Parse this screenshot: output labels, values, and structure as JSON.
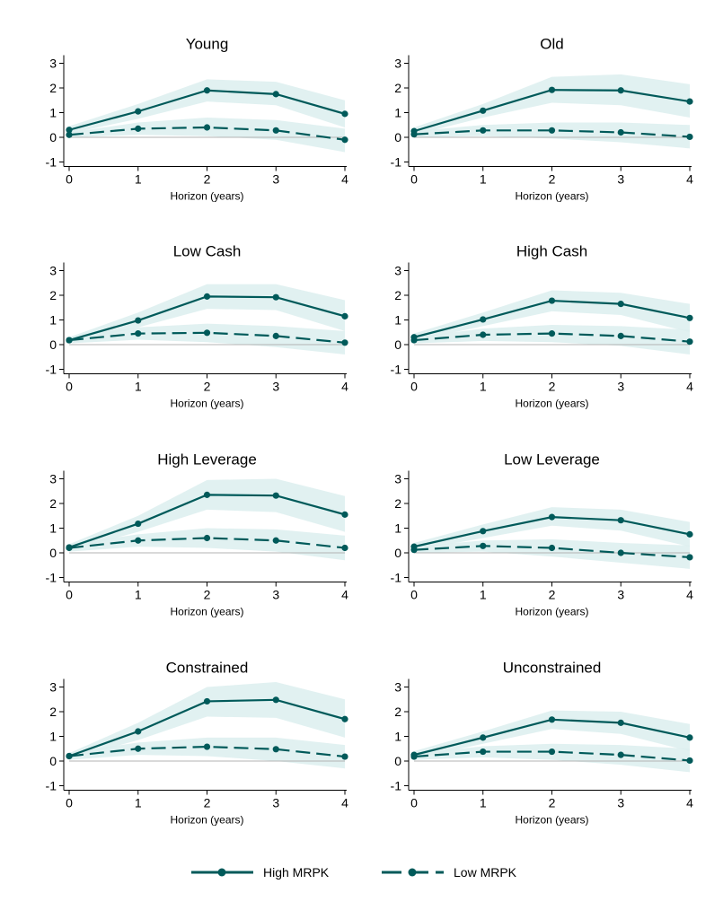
{
  "colors": {
    "line": "#005a5a",
    "band": "#dceeee",
    "zero_line": "#b3b3b3",
    "axis": "#000000"
  },
  "chart_data": [
    {
      "type": "line",
      "title": "Young",
      "xlabel": "Horizon (years)",
      "ylabel": "",
      "x": [
        0,
        1,
        2,
        3,
        4
      ],
      "xticks": [
        "0",
        "1",
        "2",
        "3",
        "4"
      ],
      "yticks": [
        "-1",
        "0",
        "1",
        "2",
        "3"
      ],
      "ylim": [
        -1,
        3
      ],
      "grid": false,
      "series": [
        {
          "name": "High MRPK",
          "style": "solid",
          "values": [
            0.3,
            1.05,
            1.9,
            1.75,
            0.95
          ],
          "ci_low": [
            0.15,
            0.75,
            1.45,
            1.3,
            0.4
          ],
          "ci_high": [
            0.45,
            1.35,
            2.35,
            2.25,
            1.5
          ]
        },
        {
          "name": "Low MRPK",
          "style": "dashed",
          "values": [
            0.1,
            0.35,
            0.4,
            0.28,
            -0.1
          ],
          "ci_low": [
            0.0,
            0.1,
            0.05,
            -0.1,
            -0.6
          ],
          "ci_high": [
            0.2,
            0.6,
            0.8,
            0.7,
            0.35
          ]
        }
      ]
    },
    {
      "type": "line",
      "title": "Old",
      "xlabel": "Horizon (years)",
      "ylabel": "",
      "x": [
        0,
        1,
        2,
        3,
        4
      ],
      "xticks": [
        "0",
        "1",
        "2",
        "3",
        "4"
      ],
      "yticks": [
        "-1",
        "0",
        "1",
        "2",
        "3"
      ],
      "ylim": [
        -1,
        3
      ],
      "grid": false,
      "series": [
        {
          "name": "High MRPK",
          "style": "solid",
          "values": [
            0.25,
            1.08,
            1.92,
            1.9,
            1.45
          ],
          "ci_low": [
            0.1,
            0.8,
            1.4,
            1.3,
            0.8
          ],
          "ci_high": [
            0.4,
            1.35,
            2.45,
            2.55,
            2.15
          ]
        },
        {
          "name": "Low MRPK",
          "style": "dashed",
          "values": [
            0.12,
            0.28,
            0.28,
            0.2,
            0.02
          ],
          "ci_low": [
            0.0,
            0.05,
            -0.05,
            -0.2,
            -0.45
          ],
          "ci_high": [
            0.25,
            0.5,
            0.6,
            0.6,
            0.5
          ]
        }
      ]
    },
    {
      "type": "line",
      "title": "Low Cash",
      "xlabel": "Horizon (years)",
      "ylabel": "",
      "x": [
        0,
        1,
        2,
        3,
        4
      ],
      "xticks": [
        "0",
        "1",
        "2",
        "3",
        "4"
      ],
      "yticks": [
        "-1",
        "0",
        "1",
        "2",
        "3"
      ],
      "ylim": [
        -1,
        3
      ],
      "grid": false,
      "series": [
        {
          "name": "High MRPK",
          "style": "solid",
          "values": [
            0.18,
            0.98,
            1.95,
            1.92,
            1.15
          ],
          "ci_low": [
            0.05,
            0.7,
            1.45,
            1.4,
            0.55
          ],
          "ci_high": [
            0.3,
            1.3,
            2.45,
            2.45,
            1.8
          ]
        },
        {
          "name": "Low MRPK",
          "style": "dashed",
          "values": [
            0.18,
            0.45,
            0.48,
            0.35,
            0.08
          ],
          "ci_low": [
            0.05,
            0.2,
            0.1,
            -0.1,
            -0.4
          ],
          "ci_high": [
            0.3,
            0.7,
            0.85,
            0.75,
            0.55
          ]
        }
      ]
    },
    {
      "type": "line",
      "title": "High Cash",
      "xlabel": "Horizon (years)",
      "ylabel": "",
      "x": [
        0,
        1,
        2,
        3,
        4
      ],
      "xticks": [
        "0",
        "1",
        "2",
        "3",
        "4"
      ],
      "yticks": [
        "-1",
        "0",
        "1",
        "2",
        "3"
      ],
      "ylim": [
        -1,
        3
      ],
      "grid": false,
      "series": [
        {
          "name": "High MRPK",
          "style": "solid",
          "values": [
            0.3,
            1.02,
            1.78,
            1.65,
            1.08
          ],
          "ci_low": [
            0.15,
            0.75,
            1.35,
            1.2,
            0.5
          ],
          "ci_high": [
            0.45,
            1.3,
            2.2,
            2.1,
            1.65
          ]
        },
        {
          "name": "Low MRPK",
          "style": "dashed",
          "values": [
            0.18,
            0.4,
            0.45,
            0.35,
            0.12
          ],
          "ci_low": [
            0.05,
            0.15,
            0.1,
            -0.05,
            -0.4
          ],
          "ci_high": [
            0.3,
            0.65,
            0.8,
            0.75,
            0.6
          ]
        }
      ]
    },
    {
      "type": "line",
      "title": "High Leverage",
      "xlabel": "Horizon (years)",
      "ylabel": "",
      "x": [
        0,
        1,
        2,
        3,
        4
      ],
      "xticks": [
        "0",
        "1",
        "2",
        "3",
        "4"
      ],
      "yticks": [
        "-1",
        "0",
        "1",
        "2",
        "3"
      ],
      "ylim": [
        -1,
        3
      ],
      "grid": false,
      "series": [
        {
          "name": "High MRPK",
          "style": "solid",
          "values": [
            0.22,
            1.18,
            2.35,
            2.32,
            1.55
          ],
          "ci_low": [
            0.1,
            0.85,
            1.75,
            1.65,
            0.85
          ],
          "ci_high": [
            0.35,
            1.5,
            2.95,
            3.0,
            2.3
          ]
        },
        {
          "name": "Low MRPK",
          "style": "dashed",
          "values": [
            0.2,
            0.5,
            0.6,
            0.5,
            0.2
          ],
          "ci_low": [
            0.05,
            0.25,
            0.2,
            0.05,
            -0.3
          ],
          "ci_high": [
            0.35,
            0.75,
            1.0,
            0.95,
            0.7
          ]
        }
      ]
    },
    {
      "type": "line",
      "title": "Low Leverage",
      "xlabel": "Horizon (years)",
      "ylabel": "",
      "x": [
        0,
        1,
        2,
        3,
        4
      ],
      "xticks": [
        "0",
        "1",
        "2",
        "3",
        "4"
      ],
      "yticks": [
        "-1",
        "0",
        "1",
        "2",
        "3"
      ],
      "ylim": [
        -1,
        3
      ],
      "grid": false,
      "series": [
        {
          "name": "High MRPK",
          "style": "solid",
          "values": [
            0.25,
            0.88,
            1.45,
            1.32,
            0.75
          ],
          "ci_low": [
            0.1,
            0.6,
            1.1,
            0.9,
            0.25
          ],
          "ci_high": [
            0.4,
            1.15,
            1.85,
            1.75,
            1.25
          ]
        },
        {
          "name": "Low MRPK",
          "style": "dashed",
          "values": [
            0.12,
            0.28,
            0.2,
            0.0,
            -0.18
          ],
          "ci_low": [
            0.0,
            0.05,
            -0.15,
            -0.4,
            -0.65
          ],
          "ci_high": [
            0.25,
            0.5,
            0.55,
            0.4,
            0.3
          ]
        }
      ]
    },
    {
      "type": "line",
      "title": "Constrained",
      "xlabel": "Horizon (years)",
      "ylabel": "",
      "x": [
        0,
        1,
        2,
        3,
        4
      ],
      "xticks": [
        "0",
        "1",
        "2",
        "3",
        "4"
      ],
      "yticks": [
        "-1",
        "0",
        "1",
        "2",
        "3"
      ],
      "ylim": [
        -1,
        3
      ],
      "grid": false,
      "series": [
        {
          "name": "High MRPK",
          "style": "solid",
          "values": [
            0.2,
            1.2,
            2.42,
            2.48,
            1.7
          ],
          "ci_low": [
            0.08,
            0.85,
            1.8,
            1.75,
            0.95
          ],
          "ci_high": [
            0.32,
            1.55,
            3.0,
            3.2,
            2.5
          ]
        },
        {
          "name": "Low MRPK",
          "style": "dashed",
          "values": [
            0.2,
            0.5,
            0.58,
            0.48,
            0.18
          ],
          "ci_low": [
            0.05,
            0.25,
            0.2,
            0.0,
            -0.3
          ],
          "ci_high": [
            0.35,
            0.75,
            0.95,
            0.95,
            0.65
          ]
        }
      ]
    },
    {
      "type": "line",
      "title": "Unconstrained",
      "xlabel": "Horizon (years)",
      "ylabel": "",
      "x": [
        0,
        1,
        2,
        3,
        4
      ],
      "xticks": [
        "0",
        "1",
        "2",
        "3",
        "4"
      ],
      "yticks": [
        "-1",
        "0",
        "1",
        "2",
        "3"
      ],
      "ylim": [
        -1,
        3
      ],
      "grid": false,
      "series": [
        {
          "name": "High MRPK",
          "style": "solid",
          "values": [
            0.25,
            0.95,
            1.68,
            1.55,
            0.95
          ],
          "ci_low": [
            0.1,
            0.7,
            1.3,
            1.1,
            0.4
          ],
          "ci_high": [
            0.4,
            1.2,
            2.05,
            2.0,
            1.5
          ]
        },
        {
          "name": "Low MRPK",
          "style": "dashed",
          "values": [
            0.18,
            0.38,
            0.38,
            0.25,
            0.02
          ],
          "ci_low": [
            0.05,
            0.15,
            0.05,
            -0.15,
            -0.45
          ],
          "ci_high": [
            0.3,
            0.6,
            0.7,
            0.65,
            0.5
          ]
        }
      ]
    }
  ],
  "legend": {
    "position": "bottom",
    "items": [
      {
        "label": "High MRPK",
        "style": "solid"
      },
      {
        "label": "Low MRPK",
        "style": "dashed"
      }
    ]
  }
}
